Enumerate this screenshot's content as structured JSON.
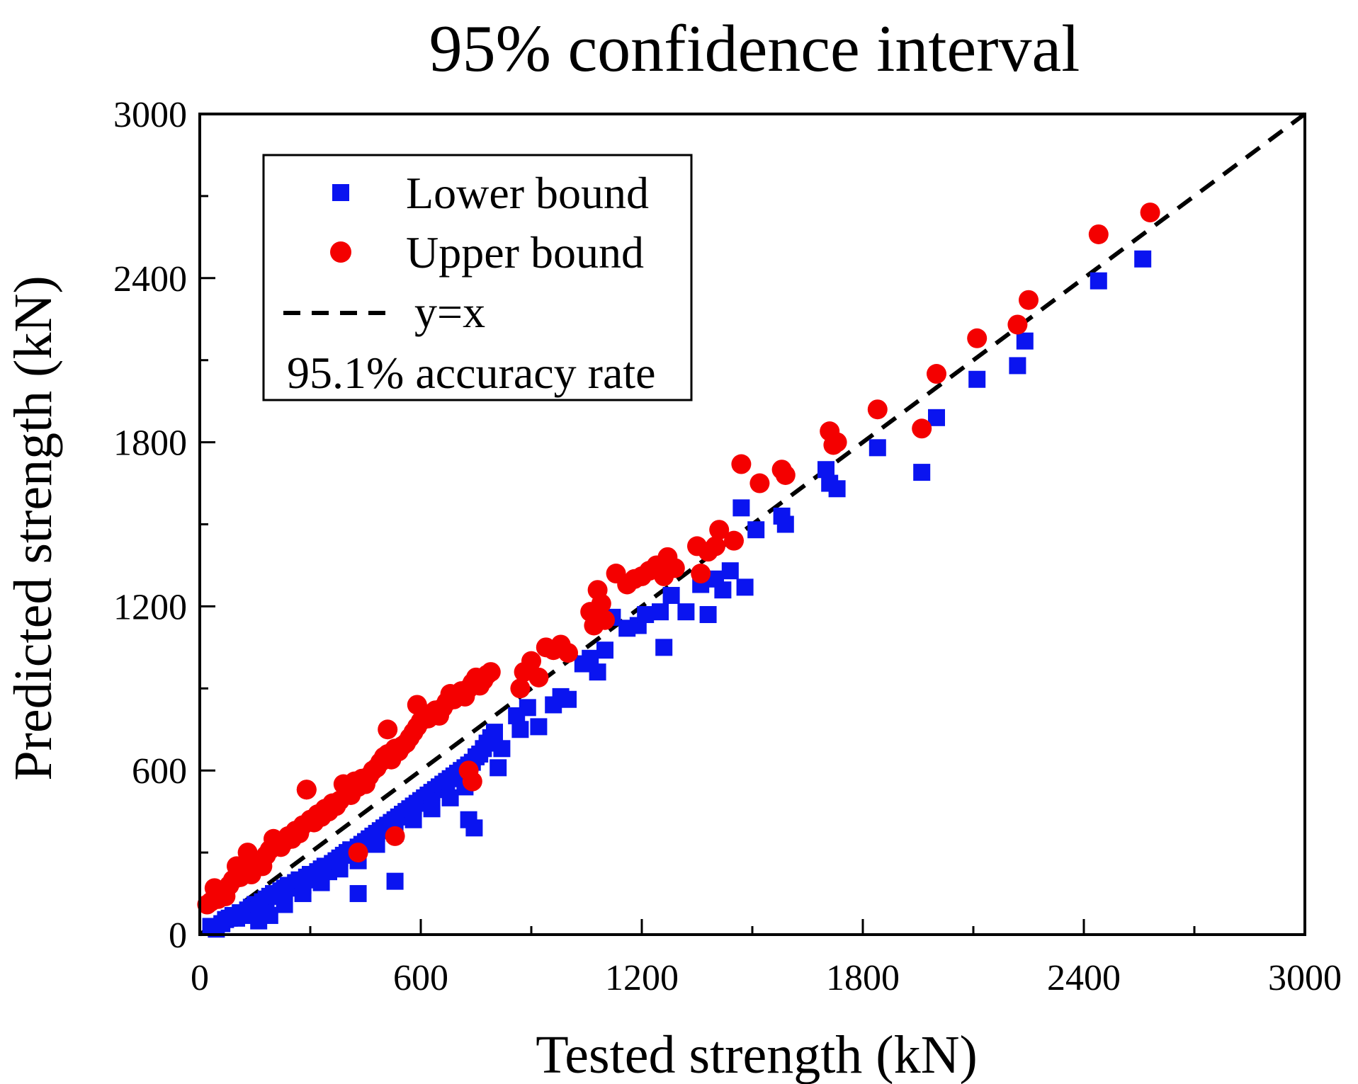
{
  "chart_data": {
    "type": "scatter",
    "title": "95% confidence interval",
    "xlabel": "Tested strength (kN)",
    "ylabel": "Predicted strength (kN)",
    "xlim": [
      0,
      3000
    ],
    "ylim": [
      0,
      3000
    ],
    "xticks": [
      0,
      600,
      1200,
      1800,
      2400,
      3000
    ],
    "yticks": [
      0,
      600,
      1200,
      1800,
      2400,
      3000
    ],
    "xtick_labels": [
      "0",
      "600",
      "1200",
      "1800",
      "2400",
      "3000"
    ],
    "ytick_labels": [
      "0",
      "600",
      "1200",
      "1800",
      "2400",
      "3000"
    ],
    "minor_ticks_step": 300,
    "grid": false,
    "legend_position": "top-left",
    "annotation": "95.1% accuracy rate",
    "colors": {
      "lower": "#0a14f0",
      "upper": "#f40000",
      "line": "#000000"
    },
    "series": [
      {
        "name": "Lower bound",
        "marker": "square",
        "points": [
          [
            30,
            30
          ],
          [
            45,
            20
          ],
          [
            60,
            40
          ],
          [
            70,
            55
          ],
          [
            80,
            60
          ],
          [
            90,
            70
          ],
          [
            100,
            60
          ],
          [
            110,
            80
          ],
          [
            120,
            70
          ],
          [
            130,
            90
          ],
          [
            140,
            100
          ],
          [
            150,
            110
          ],
          [
            160,
            90
          ],
          [
            170,
            120
          ],
          [
            180,
            130
          ],
          [
            190,
            140
          ],
          [
            200,
            150
          ],
          [
            210,
            140
          ],
          [
            220,
            160
          ],
          [
            230,
            170
          ],
          [
            240,
            180
          ],
          [
            250,
            170
          ],
          [
            260,
            190
          ],
          [
            270,
            200
          ],
          [
            280,
            180
          ],
          [
            290,
            210
          ],
          [
            300,
            220
          ],
          [
            310,
            200
          ],
          [
            320,
            230
          ],
          [
            330,
            240
          ],
          [
            340,
            250
          ],
          [
            350,
            230
          ],
          [
            360,
            260
          ],
          [
            370,
            270
          ],
          [
            380,
            280
          ],
          [
            390,
            290
          ],
          [
            400,
            300
          ],
          [
            410,
            310
          ],
          [
            420,
            290
          ],
          [
            430,
            320
          ],
          [
            440,
            330
          ],
          [
            450,
            340
          ],
          [
            460,
            350
          ],
          [
            470,
            360
          ],
          [
            480,
            370
          ],
          [
            490,
            380
          ],
          [
            500,
            390
          ],
          [
            510,
            400
          ],
          [
            520,
            410
          ],
          [
            530,
            420
          ],
          [
            540,
            430
          ],
          [
            550,
            440
          ],
          [
            560,
            450
          ],
          [
            570,
            460
          ],
          [
            580,
            470
          ],
          [
            590,
            480
          ],
          [
            600,
            490
          ],
          [
            610,
            500
          ],
          [
            620,
            510
          ],
          [
            630,
            520
          ],
          [
            640,
            530
          ],
          [
            650,
            540
          ],
          [
            660,
            550
          ],
          [
            670,
            560
          ],
          [
            680,
            570
          ],
          [
            690,
            580
          ],
          [
            700,
            590
          ],
          [
            710,
            600
          ],
          [
            720,
            610
          ],
          [
            730,
            620
          ],
          [
            740,
            630
          ],
          [
            750,
            650
          ],
          [
            760,
            660
          ],
          [
            770,
            680
          ],
          [
            780,
            700
          ],
          [
            790,
            720
          ],
          [
            800,
            740
          ],
          [
            160,
            50
          ],
          [
            190,
            70
          ],
          [
            230,
            110
          ],
          [
            280,
            150
          ],
          [
            330,
            190
          ],
          [
            380,
            240
          ],
          [
            430,
            270
          ],
          [
            480,
            330
          ],
          [
            530,
            370
          ],
          [
            580,
            420
          ],
          [
            630,
            460
          ],
          [
            680,
            500
          ],
          [
            720,
            540
          ],
          [
            430,
            150
          ],
          [
            530,
            195
          ],
          [
            730,
            420
          ],
          [
            745,
            390
          ],
          [
            810,
            610
          ],
          [
            820,
            680
          ],
          [
            860,
            800
          ],
          [
            870,
            750
          ],
          [
            890,
            830
          ],
          [
            920,
            760
          ],
          [
            960,
            840
          ],
          [
            980,
            870
          ],
          [
            1000,
            860
          ],
          [
            1040,
            990
          ],
          [
            1060,
            1010
          ],
          [
            1080,
            960
          ],
          [
            1100,
            1040
          ],
          [
            1120,
            1160
          ],
          [
            1160,
            1120
          ],
          [
            1190,
            1130
          ],
          [
            1210,
            1170
          ],
          [
            1250,
            1180
          ],
          [
            1260,
            1050
          ],
          [
            1280,
            1240
          ],
          [
            1320,
            1180
          ],
          [
            1360,
            1280
          ],
          [
            1380,
            1170
          ],
          [
            1400,
            1300
          ],
          [
            1420,
            1260
          ],
          [
            1440,
            1330
          ],
          [
            1470,
            1560
          ],
          [
            1480,
            1270
          ],
          [
            1510,
            1480
          ],
          [
            1580,
            1530
          ],
          [
            1590,
            1500
          ],
          [
            1700,
            1700
          ],
          [
            1710,
            1650
          ],
          [
            1730,
            1630
          ],
          [
            1840,
            1780
          ],
          [
            1960,
            1690
          ],
          [
            2000,
            1890
          ],
          [
            2110,
            2030
          ],
          [
            2220,
            2080
          ],
          [
            2240,
            2170
          ],
          [
            2440,
            2390
          ],
          [
            2560,
            2470
          ]
        ]
      },
      {
        "name": "Upper bound",
        "marker": "circle",
        "points": [
          [
            20,
            110
          ],
          [
            30,
            120
          ],
          [
            40,
            170
          ],
          [
            50,
            130
          ],
          [
            60,
            150
          ],
          [
            70,
            140
          ],
          [
            80,
            180
          ],
          [
            90,
            200
          ],
          [
            100,
            250
          ],
          [
            110,
            210
          ],
          [
            120,
            230
          ],
          [
            130,
            300
          ],
          [
            140,
            220
          ],
          [
            150,
            260
          ],
          [
            160,
            270
          ],
          [
            170,
            250
          ],
          [
            180,
            290
          ],
          [
            190,
            310
          ],
          [
            200,
            350
          ],
          [
            210,
            330
          ],
          [
            220,
            320
          ],
          [
            230,
            340
          ],
          [
            240,
            360
          ],
          [
            250,
            350
          ],
          [
            260,
            380
          ],
          [
            270,
            370
          ],
          [
            280,
            400
          ],
          [
            290,
            530
          ],
          [
            300,
            420
          ],
          [
            310,
            410
          ],
          [
            320,
            440
          ],
          [
            330,
            430
          ],
          [
            340,
            460
          ],
          [
            350,
            450
          ],
          [
            360,
            480
          ],
          [
            370,
            470
          ],
          [
            380,
            490
          ],
          [
            390,
            550
          ],
          [
            400,
            520
          ],
          [
            410,
            510
          ],
          [
            420,
            560
          ],
          [
            430,
            540
          ],
          [
            440,
            570
          ],
          [
            450,
            550
          ],
          [
            460,
            580
          ],
          [
            470,
            600
          ],
          [
            480,
            610
          ],
          [
            490,
            630
          ],
          [
            500,
            650
          ],
          [
            510,
            660
          ],
          [
            520,
            640
          ],
          [
            530,
            680
          ],
          [
            540,
            670
          ],
          [
            550,
            690
          ],
          [
            560,
            700
          ],
          [
            570,
            720
          ],
          [
            580,
            740
          ],
          [
            590,
            760
          ],
          [
            600,
            780
          ],
          [
            610,
            800
          ],
          [
            620,
            790
          ],
          [
            630,
            810
          ],
          [
            640,
            820
          ],
          [
            650,
            800
          ],
          [
            660,
            830
          ],
          [
            670,
            850
          ],
          [
            680,
            870
          ],
          [
            690,
            860
          ],
          [
            700,
            880
          ],
          [
            710,
            890
          ],
          [
            720,
            870
          ],
          [
            730,
            900
          ],
          [
            740,
            920
          ],
          [
            750,
            940
          ],
          [
            760,
            910
          ],
          [
            770,
            930
          ],
          [
            780,
            950
          ],
          [
            790,
            960
          ],
          [
            510,
            750
          ],
          [
            590,
            840
          ],
          [
            680,
            880
          ],
          [
            290,
            530
          ],
          [
            430,
            300
          ],
          [
            530,
            360
          ],
          [
            730,
            600
          ],
          [
            740,
            560
          ],
          [
            870,
            900
          ],
          [
            880,
            960
          ],
          [
            900,
            1000
          ],
          [
            920,
            940
          ],
          [
            940,
            1050
          ],
          [
            960,
            1040
          ],
          [
            980,
            1060
          ],
          [
            1000,
            1030
          ],
          [
            1060,
            1180
          ],
          [
            1070,
            1130
          ],
          [
            1080,
            1260
          ],
          [
            1090,
            1210
          ],
          [
            1100,
            1150
          ],
          [
            1130,
            1320
          ],
          [
            1160,
            1280
          ],
          [
            1180,
            1300
          ],
          [
            1200,
            1310
          ],
          [
            1220,
            1330
          ],
          [
            1240,
            1350
          ],
          [
            1260,
            1310
          ],
          [
            1270,
            1380
          ],
          [
            1290,
            1340
          ],
          [
            1350,
            1420
          ],
          [
            1360,
            1320
          ],
          [
            1380,
            1400
          ],
          [
            1400,
            1420
          ],
          [
            1410,
            1480
          ],
          [
            1450,
            1440
          ],
          [
            1470,
            1720
          ],
          [
            1520,
            1650
          ],
          [
            1580,
            1700
          ],
          [
            1590,
            1680
          ],
          [
            1710,
            1840
          ],
          [
            1720,
            1790
          ],
          [
            1730,
            1800
          ],
          [
            1840,
            1920
          ],
          [
            1960,
            1850
          ],
          [
            2000,
            2050
          ],
          [
            2110,
            2180
          ],
          [
            2220,
            2230
          ],
          [
            2250,
            2320
          ],
          [
            2440,
            2560
          ],
          [
            2580,
            2640
          ]
        ]
      },
      {
        "name": "y=x",
        "style": "dashed-line",
        "points": [
          [
            0,
            0
          ],
          [
            3000,
            3000
          ]
        ]
      }
    ]
  }
}
